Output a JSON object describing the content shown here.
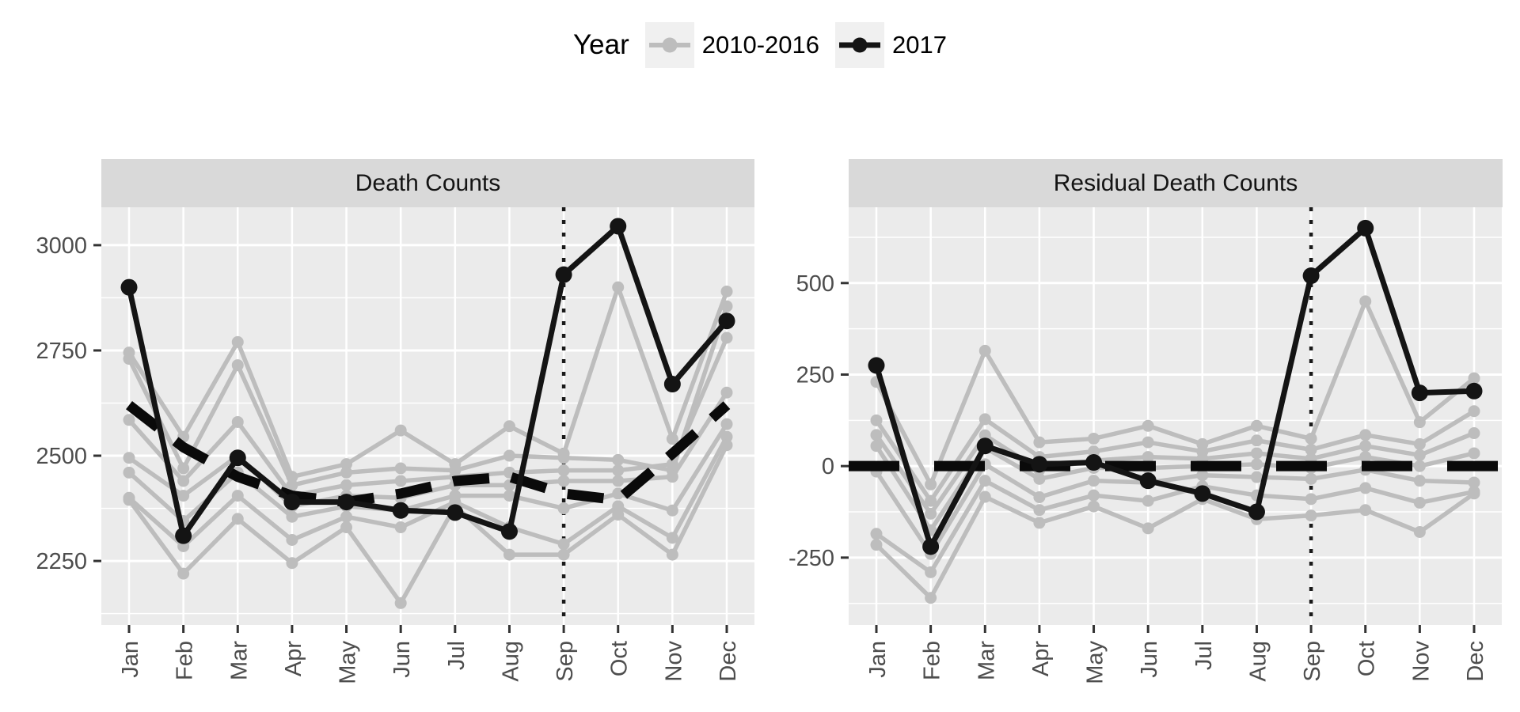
{
  "legend": {
    "title": "Year",
    "items": [
      {
        "label": "2010-2016",
        "color": "#BDBDBD",
        "key_bg": "#F0F0F0"
      },
      {
        "label": "2017",
        "color": "#141414",
        "key_bg": "#F0F0F0"
      }
    ]
  },
  "colors": {
    "panel_bg": "#EBEBEB",
    "strip_bg": "#D9D9D9",
    "grid": "#FFFFFF",
    "axis_text": "#4D4D4D",
    "tick": "#333333",
    "past_series": "#BDBDBD",
    "current_series": "#141414",
    "baseline": "#0A0A0A",
    "vline": "#1A1A1A"
  },
  "chart_data": [
    {
      "type": "line",
      "title": "Death Counts",
      "categories": [
        "Jan",
        "Feb",
        "Mar",
        "Apr",
        "May",
        "Jun",
        "Jul",
        "Aug",
        "Sep",
        "Oct",
        "Nov",
        "Dec"
      ],
      "ylim": [
        2098,
        3090
      ],
      "yticks": [
        2250,
        2500,
        2750,
        3000
      ],
      "minor_step": 125,
      "vline_at": "Sep",
      "legend_position": "top",
      "grid": true,
      "series": [
        {
          "name": "2010-2016 line 1",
          "role": "past",
          "values": [
            2745,
            2545,
            2770,
            2450,
            2480,
            2560,
            2480,
            2570,
            2505,
            2900,
            2540,
            2890
          ]
        },
        {
          "name": "2010-2016 line 2",
          "role": "past",
          "values": [
            2730,
            2470,
            2715,
            2430,
            2460,
            2470,
            2465,
            2500,
            2495,
            2490,
            2465,
            2855
          ]
        },
        {
          "name": "2010-2016 line 3",
          "role": "past",
          "values": [
            2585,
            2440,
            2580,
            2405,
            2430,
            2440,
            2450,
            2460,
            2465,
            2465,
            2480,
            2780
          ]
        },
        {
          "name": "2010-2016 line 4",
          "role": "past",
          "values": [
            2495,
            2405,
            2500,
            2380,
            2405,
            2400,
            2430,
            2430,
            2440,
            2440,
            2450,
            2650
          ]
        },
        {
          "name": "2010-2016 line 5",
          "role": "past",
          "values": [
            2460,
            2345,
            2460,
            2355,
            2380,
            2370,
            2405,
            2405,
            2375,
            2410,
            2370,
            2575
          ]
        },
        {
          "name": "2010-2016 line 6",
          "role": "past",
          "values": [
            2400,
            2285,
            2405,
            2300,
            2355,
            2330,
            2390,
            2330,
            2290,
            2380,
            2305,
            2545
          ]
        },
        {
          "name": "2010-2016 line 7",
          "role": "past",
          "values": [
            2395,
            2220,
            2350,
            2245,
            2330,
            2150,
            2380,
            2265,
            2265,
            2360,
            2265,
            2525
          ]
        },
        {
          "name": "seasonal baseline",
          "role": "baseline",
          "values": [
            2620,
            2520,
            2450,
            2405,
            2390,
            2410,
            2440,
            2450,
            2410,
            2395,
            2505,
            2620
          ]
        },
        {
          "name": "2017",
          "role": "current",
          "values": [
            2900,
            2310,
            2495,
            2390,
            2390,
            2370,
            2365,
            2320,
            2930,
            3045,
            2670,
            2820
          ]
        }
      ]
    },
    {
      "type": "line",
      "title": "Residual Death Counts",
      "categories": [
        "Jan",
        "Feb",
        "Mar",
        "Apr",
        "May",
        "Jun",
        "Jul",
        "Aug",
        "Sep",
        "Oct",
        "Nov",
        "Dec"
      ],
      "ylim": [
        -434,
        707
      ],
      "yticks": [
        -250,
        0,
        250,
        500
      ],
      "minor_step": 125,
      "vline_at": "Sep",
      "legend_position": "top",
      "grid": true,
      "series": [
        {
          "name": "2010-2016 line 1",
          "role": "past",
          "values": [
            230,
            -50,
            315,
            65,
            75,
            110,
            60,
            110,
            75,
            450,
            120,
            240
          ]
        },
        {
          "name": "2010-2016 line 2",
          "role": "past",
          "values": [
            125,
            -95,
            128,
            25,
            40,
            65,
            40,
            70,
            45,
            85,
            60,
            150
          ]
        },
        {
          "name": "2010-2016 line 3",
          "role": "past",
          "values": [
            85,
            -130,
            84,
            -10,
            15,
            25,
            20,
            35,
            20,
            55,
            30,
            90
          ]
        },
        {
          "name": "2010-2016 line 4",
          "role": "past",
          "values": [
            55,
            -175,
            50,
            -35,
            -5,
            -5,
            0,
            5,
            -5,
            25,
            0,
            35
          ]
        },
        {
          "name": "2010-2016 line 5",
          "role": "past",
          "values": [
            -15,
            -240,
            5,
            -85,
            -40,
            -45,
            -25,
            -30,
            -35,
            -10,
            -40,
            -45
          ]
        },
        {
          "name": "2010-2016 line 6",
          "role": "past",
          "values": [
            -185,
            -290,
            -40,
            -120,
            -80,
            -95,
            -55,
            -80,
            -90,
            -60,
            -100,
            -70
          ]
        },
        {
          "name": "2010-2016 line 7",
          "role": "past",
          "values": [
            -215,
            -360,
            -84,
            -155,
            -110,
            -170,
            -90,
            -145,
            -135,
            -120,
            -180,
            -75
          ]
        },
        {
          "name": "zero baseline",
          "role": "baseline",
          "values": [
            0,
            0,
            0,
            0,
            0,
            0,
            0,
            0,
            0,
            0,
            0,
            0
          ]
        },
        {
          "name": "2017",
          "role": "current",
          "values": [
            275,
            -220,
            55,
            5,
            10,
            -40,
            -75,
            -125,
            520,
            650,
            200,
            205
          ]
        }
      ]
    }
  ]
}
